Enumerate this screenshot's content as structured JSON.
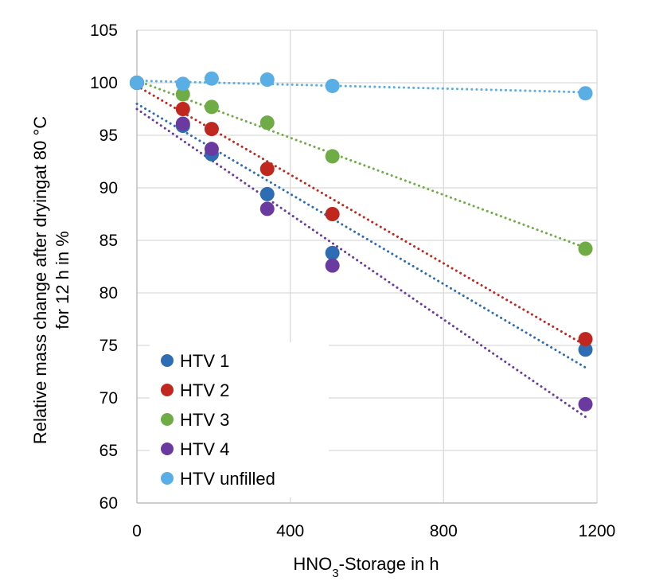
{
  "chart_data": {
    "type": "scatter",
    "title": "",
    "xlabel_main": "HNO",
    "xlabel_sub": "3",
    "xlabel_rest": "-Storage in h",
    "ylabel_line1": "Relative mass change after dryingat 80 °C",
    "ylabel_line2": "for 12 h in %",
    "xlim": [
      0,
      1200
    ],
    "ylim": [
      60,
      105
    ],
    "xticks": [
      0,
      400,
      800,
      1200
    ],
    "yticks": [
      60,
      65,
      70,
      75,
      80,
      85,
      90,
      95,
      100,
      105
    ],
    "grid": true,
    "trendlines": "linear, dotted",
    "legend_position": "bottom-left",
    "series": [
      {
        "name": "HTV 1",
        "color": "#2e6db4",
        "x": [
          0,
          120,
          195,
          340,
          510,
          1170
        ],
        "y": [
          100,
          95.9,
          93.2,
          89.4,
          83.8,
          74.6
        ],
        "trend": {
          "x": [
            0,
            1170
          ],
          "y": [
            98.0,
            72.9
          ]
        }
      },
      {
        "name": "HTV 2",
        "color": "#c0281f",
        "x": [
          0,
          120,
          195,
          340,
          510,
          1170
        ],
        "y": [
          100,
          97.5,
          95.6,
          91.8,
          87.5,
          75.6
        ],
        "trend": {
          "x": [
            0,
            1170
          ],
          "y": [
            99.7,
            75.0
          ]
        }
      },
      {
        "name": "HTV 3",
        "color": "#6fac46",
        "x": [
          0,
          120,
          195,
          340,
          510,
          1170
        ],
        "y": [
          100,
          98.9,
          97.7,
          96.2,
          93.0,
          84.2
        ],
        "trend": {
          "x": [
            0,
            1170
          ],
          "y": [
            100.2,
            84.3
          ]
        }
      },
      {
        "name": "HTV 4",
        "color": "#6b3aa0",
        "x": [
          0,
          120,
          195,
          340,
          510,
          1170
        ],
        "y": [
          100,
          96.1,
          93.7,
          88.0,
          82.6,
          69.4
        ],
        "trend": {
          "x": [
            0,
            1170
          ],
          "y": [
            97.5,
            68.2
          ]
        }
      },
      {
        "name": "HTV unfilled",
        "color": "#5aaee6",
        "x": [
          0,
          120,
          195,
          340,
          510,
          1170
        ],
        "y": [
          100,
          99.9,
          100.4,
          100.3,
          99.7,
          99.0
        ],
        "trend": {
          "x": [
            0,
            1170
          ],
          "y": [
            100.2,
            99.1
          ]
        }
      }
    ]
  }
}
